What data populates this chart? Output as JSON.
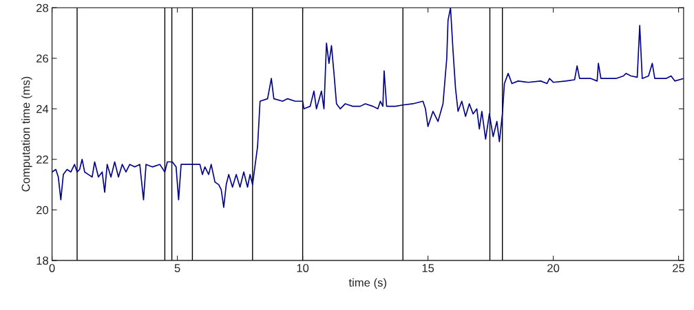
{
  "chart_data": {
    "type": "line",
    "xlabel": "time (s)",
    "ylabel": "Computation time (ms)",
    "xlim": [
      0,
      25.2
    ],
    "xticks": [
      0,
      5,
      10,
      15,
      20,
      25
    ],
    "ylim": [
      18,
      28
    ],
    "yticks": [
      18,
      20,
      22,
      24,
      26,
      28
    ],
    "grid": false,
    "legend": false,
    "marker": "none",
    "line_style": "solid",
    "ref_lines": [
      {
        "axis": "x",
        "value": 1.0,
        "color": "#000000"
      },
      {
        "axis": "x",
        "value": 4.5,
        "color": "#000000"
      },
      {
        "axis": "x",
        "value": 4.78,
        "color": "#000000"
      },
      {
        "axis": "x",
        "value": 5.6,
        "color": "#000000"
      },
      {
        "axis": "x",
        "value": 8.0,
        "color": "#000000"
      },
      {
        "axis": "x",
        "value": 10.0,
        "color": "#000000"
      },
      {
        "axis": "x",
        "value": 14.0,
        "color": "#000000"
      },
      {
        "axis": "x",
        "value": 17.47,
        "color": "#000000"
      },
      {
        "axis": "x",
        "value": 17.97,
        "color": "#000000"
      }
    ],
    "series": [
      {
        "color": "#00008b",
        "x": [
          0,
          0.15,
          0.25,
          0.35,
          0.45,
          0.6,
          0.75,
          0.9,
          1.0,
          1.1,
          1.2,
          1.3,
          1.45,
          1.6,
          1.7,
          1.85,
          2.0,
          2.1,
          2.2,
          2.35,
          2.5,
          2.65,
          2.8,
          2.95,
          3.1,
          3.3,
          3.5,
          3.65,
          3.75,
          4.0,
          4.3,
          4.5,
          4.6,
          4.8,
          4.95,
          5.05,
          5.15,
          5.4,
          5.7,
          5.9,
          6.0,
          6.1,
          6.25,
          6.35,
          6.5,
          6.65,
          6.75,
          6.85,
          6.95,
          7.05,
          7.2,
          7.35,
          7.5,
          7.65,
          7.8,
          7.9,
          8.0,
          8.2,
          8.3,
          8.6,
          8.75,
          8.85,
          9.2,
          9.4,
          9.7,
          10.0,
          10.05,
          10.3,
          10.45,
          10.55,
          10.75,
          10.85,
          10.95,
          11.05,
          11.15,
          11.25,
          11.35,
          11.5,
          11.7,
          12.0,
          12.3,
          12.5,
          12.8,
          13.0,
          13.1,
          13.2,
          13.25,
          13.35,
          13.7,
          14.0,
          14.4,
          14.8,
          14.9,
          15.0,
          15.2,
          15.4,
          15.6,
          15.75,
          15.8,
          15.9,
          16.0,
          16.1,
          16.2,
          16.35,
          16.5,
          16.65,
          16.8,
          16.95,
          17.05,
          17.15,
          17.3,
          17.45,
          17.6,
          17.75,
          17.85,
          17.97,
          18.05,
          18.2,
          18.35,
          18.6,
          19.0,
          19.5,
          19.75,
          19.85,
          20.0,
          20.5,
          20.85,
          20.95,
          21.05,
          21.5,
          21.75,
          21.8,
          21.9,
          22.5,
          22.8,
          22.9,
          23.1,
          23.35,
          23.45,
          23.55,
          23.8,
          23.95,
          24.05,
          24.5,
          24.7,
          24.85,
          25.2
        ],
        "values": [
          21.5,
          21.6,
          21.3,
          20.4,
          21.4,
          21.6,
          21.5,
          21.8,
          21.5,
          21.6,
          22.0,
          21.5,
          21.4,
          21.3,
          21.9,
          21.3,
          21.5,
          20.7,
          21.8,
          21.3,
          21.9,
          21.3,
          21.8,
          21.5,
          21.8,
          21.7,
          21.8,
          20.4,
          21.8,
          21.7,
          21.8,
          21.5,
          21.9,
          21.9,
          21.7,
          20.4,
          21.8,
          21.8,
          21.8,
          21.8,
          21.4,
          21.7,
          21.4,
          21.8,
          21.1,
          21.0,
          20.8,
          20.1,
          21.0,
          21.4,
          20.9,
          21.4,
          20.9,
          21.5,
          20.9,
          21.4,
          21.0,
          22.5,
          24.3,
          24.4,
          25.2,
          24.4,
          24.3,
          24.4,
          24.3,
          24.3,
          24.0,
          24.1,
          24.7,
          24.0,
          24.7,
          24.0,
          26.6,
          25.8,
          26.5,
          25.4,
          24.2,
          24.0,
          24.2,
          24.1,
          24.1,
          24.2,
          24.1,
          24.0,
          24.3,
          24.1,
          25.5,
          24.1,
          24.1,
          24.15,
          24.2,
          24.3,
          24.0,
          23.3,
          23.9,
          23.5,
          24.2,
          26.0,
          27.5,
          28.0,
          26.3,
          24.8,
          23.9,
          24.3,
          23.7,
          24.2,
          23.8,
          24.0,
          23.2,
          23.9,
          22.8,
          23.8,
          22.9,
          23.5,
          22.7,
          23.8,
          25.0,
          25.4,
          25.0,
          25.1,
          25.05,
          25.1,
          25.0,
          25.2,
          25.05,
          25.1,
          25.15,
          25.7,
          25.2,
          25.2,
          25.1,
          25.8,
          25.2,
          25.2,
          25.3,
          25.4,
          25.3,
          25.25,
          27.3,
          25.2,
          25.3,
          25.8,
          25.2,
          25.2,
          25.3,
          25.1,
          25.2
        ]
      }
    ]
  }
}
